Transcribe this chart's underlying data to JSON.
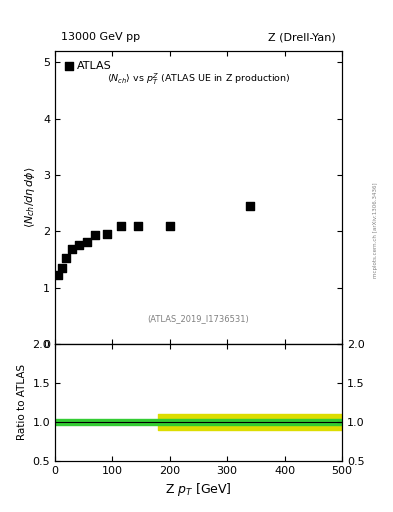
{
  "title_top_left": "13000 GeV pp",
  "title_top_right": "Z (Drell-Yan)",
  "ref_annotation": "(ATLAS_2019_I1736531)",
  "legend_label": "ATLAS",
  "ylabel_main": "<N_{ch}/d\\eta\\, d\\phi>",
  "ylabel_ratio": "Ratio to ATLAS",
  "xlabel": "Z p_{T} [GeV]",
  "watermark": "mcplots.cern.ch [arXiv:1306.3436]",
  "data_x": [
    5,
    12,
    20,
    30,
    42,
    55,
    70,
    90,
    115,
    145,
    200,
    340
  ],
  "data_y": [
    1.22,
    1.35,
    1.52,
    1.68,
    1.75,
    1.81,
    1.93,
    1.95,
    2.1,
    2.1,
    2.1,
    2.44
  ],
  "xlim": [
    0,
    500
  ],
  "ylim_main": [
    0,
    5.2
  ],
  "ylim_ratio": [
    0.5,
    2.0
  ],
  "yticks_main": [
    0,
    1,
    2,
    3,
    4,
    5
  ],
  "yticks_ratio": [
    0.5,
    1.0,
    1.5,
    2.0
  ],
  "xticks": [
    0,
    100,
    200,
    300,
    400,
    500
  ],
  "ratio_line_y": 1.0,
  "green_band_ylo": 0.96,
  "green_band_yhi": 1.04,
  "yellow_band_ylo": 0.9,
  "yellow_band_yhi": 1.1,
  "green_band_xlo": 0,
  "green_band_xhi": 500,
  "yellow_band_xlo": 180,
  "yellow_band_xhi": 500,
  "marker_color": "black",
  "marker_size": 6,
  "background_color": "white",
  "green_color": "#33cc33",
  "yellow_color": "#dddd00"
}
